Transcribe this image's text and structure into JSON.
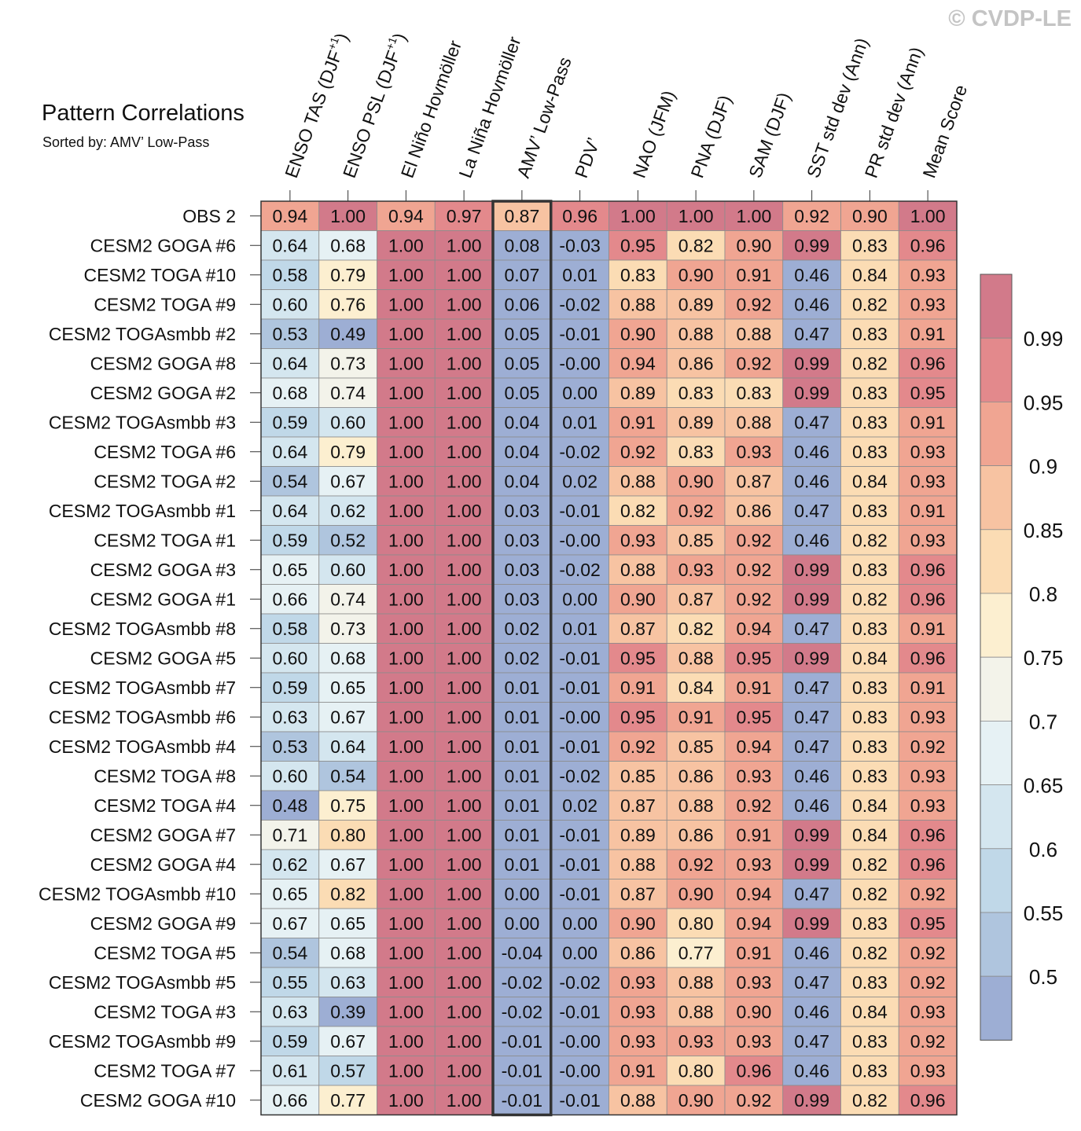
{
  "copyright": "© CVDP-LE",
  "chart_data": {
    "type": "heatmap",
    "title": "Pattern Correlations",
    "subtitle": "Sorted by: AMV’ Low-Pass",
    "highlighted_column": "AMV’ Low-Pass",
    "columns": [
      {
        "base": "ENSO TAS (DJF",
        "sup": "+1",
        "tail": ")"
      },
      {
        "base": "ENSO PSL (DJF",
        "sup": "+1",
        "tail": ")"
      },
      {
        "base": "El Niño Hovmöller",
        "sup": "",
        "tail": ""
      },
      {
        "base": "La Niña Hovmöller",
        "sup": "",
        "tail": ""
      },
      {
        "base": "AMV’ Low-Pass",
        "sup": "",
        "tail": ""
      },
      {
        "base": "PDV’",
        "sup": "",
        "tail": ""
      },
      {
        "base": "NAO (JFM)",
        "sup": "",
        "tail": ""
      },
      {
        "base": "PNA (DJF)",
        "sup": "",
        "tail": ""
      },
      {
        "base": "SAM (DJF)",
        "sup": "",
        "tail": ""
      },
      {
        "base": "SST std dev (Ann)",
        "sup": "",
        "tail": ""
      },
      {
        "base": "PR std dev (Ann)",
        "sup": "",
        "tail": ""
      },
      {
        "base": "Mean Score",
        "sup": "",
        "tail": ""
      }
    ],
    "rows": [
      {
        "label": "OBS 2",
        "values": [
          "0.94",
          "1.00",
          "0.94",
          "0.97",
          "0.87",
          "0.96",
          "1.00",
          "1.00",
          "1.00",
          "0.92",
          "0.90",
          "1.00"
        ]
      },
      {
        "label": "CESM2 GOGA #6",
        "values": [
          "0.64",
          "0.68",
          "1.00",
          "1.00",
          "0.08",
          "-0.03",
          "0.95",
          "0.82",
          "0.90",
          "0.99",
          "0.83",
          "0.96"
        ]
      },
      {
        "label": "CESM2 TOGA #10",
        "values": [
          "0.58",
          "0.79",
          "1.00",
          "1.00",
          "0.07",
          "0.01",
          "0.83",
          "0.90",
          "0.91",
          "0.46",
          "0.84",
          "0.93"
        ]
      },
      {
        "label": "CESM2 TOGA #9",
        "values": [
          "0.60",
          "0.76",
          "1.00",
          "1.00",
          "0.06",
          "-0.02",
          "0.88",
          "0.89",
          "0.92",
          "0.46",
          "0.82",
          "0.93"
        ]
      },
      {
        "label": "CESM2 TOGAsmbb #2",
        "values": [
          "0.53",
          "0.49",
          "1.00",
          "1.00",
          "0.05",
          "-0.01",
          "0.90",
          "0.88",
          "0.88",
          "0.47",
          "0.83",
          "0.91"
        ]
      },
      {
        "label": "CESM2 GOGA #8",
        "values": [
          "0.64",
          "0.73",
          "1.00",
          "1.00",
          "0.05",
          "-0.00",
          "0.94",
          "0.86",
          "0.92",
          "0.99",
          "0.82",
          "0.96"
        ]
      },
      {
        "label": "CESM2 GOGA #2",
        "values": [
          "0.68",
          "0.74",
          "1.00",
          "1.00",
          "0.05",
          "0.00",
          "0.89",
          "0.83",
          "0.83",
          "0.99",
          "0.83",
          "0.95"
        ]
      },
      {
        "label": "CESM2 TOGAsmbb #3",
        "values": [
          "0.59",
          "0.60",
          "1.00",
          "1.00",
          "0.04",
          "0.01",
          "0.91",
          "0.89",
          "0.88",
          "0.47",
          "0.83",
          "0.91"
        ]
      },
      {
        "label": "CESM2 TOGA #6",
        "values": [
          "0.64",
          "0.79",
          "1.00",
          "1.00",
          "0.04",
          "-0.02",
          "0.92",
          "0.83",
          "0.93",
          "0.46",
          "0.83",
          "0.93"
        ]
      },
      {
        "label": "CESM2 TOGA #2",
        "values": [
          "0.54",
          "0.67",
          "1.00",
          "1.00",
          "0.04",
          "0.02",
          "0.88",
          "0.90",
          "0.87",
          "0.46",
          "0.84",
          "0.93"
        ]
      },
      {
        "label": "CESM2 TOGAsmbb #1",
        "values": [
          "0.64",
          "0.62",
          "1.00",
          "1.00",
          "0.03",
          "-0.01",
          "0.82",
          "0.92",
          "0.86",
          "0.47",
          "0.83",
          "0.91"
        ]
      },
      {
        "label": "CESM2 TOGA #1",
        "values": [
          "0.59",
          "0.52",
          "1.00",
          "1.00",
          "0.03",
          "-0.00",
          "0.93",
          "0.85",
          "0.92",
          "0.46",
          "0.82",
          "0.93"
        ]
      },
      {
        "label": "CESM2 GOGA #3",
        "values": [
          "0.65",
          "0.60",
          "1.00",
          "1.00",
          "0.03",
          "-0.02",
          "0.88",
          "0.93",
          "0.92",
          "0.99",
          "0.83",
          "0.96"
        ]
      },
      {
        "label": "CESM2 GOGA #1",
        "values": [
          "0.66",
          "0.74",
          "1.00",
          "1.00",
          "0.03",
          "0.00",
          "0.90",
          "0.87",
          "0.92",
          "0.99",
          "0.82",
          "0.96"
        ]
      },
      {
        "label": "CESM2 TOGAsmbb #8",
        "values": [
          "0.58",
          "0.73",
          "1.00",
          "1.00",
          "0.02",
          "0.01",
          "0.87",
          "0.82",
          "0.94",
          "0.47",
          "0.83",
          "0.91"
        ]
      },
      {
        "label": "CESM2 GOGA #5",
        "values": [
          "0.60",
          "0.68",
          "1.00",
          "1.00",
          "0.02",
          "-0.01",
          "0.95",
          "0.88",
          "0.95",
          "0.99",
          "0.84",
          "0.96"
        ]
      },
      {
        "label": "CESM2 TOGAsmbb #7",
        "values": [
          "0.59",
          "0.65",
          "1.00",
          "1.00",
          "0.01",
          "-0.01",
          "0.91",
          "0.84",
          "0.91",
          "0.47",
          "0.83",
          "0.91"
        ]
      },
      {
        "label": "CESM2 TOGAsmbb #6",
        "values": [
          "0.63",
          "0.67",
          "1.00",
          "1.00",
          "0.01",
          "-0.00",
          "0.95",
          "0.91",
          "0.95",
          "0.47",
          "0.83",
          "0.93"
        ]
      },
      {
        "label": "CESM2 TOGAsmbb #4",
        "values": [
          "0.53",
          "0.64",
          "1.00",
          "1.00",
          "0.01",
          "-0.01",
          "0.92",
          "0.85",
          "0.94",
          "0.47",
          "0.83",
          "0.92"
        ]
      },
      {
        "label": "CESM2 TOGA #8",
        "values": [
          "0.60",
          "0.54",
          "1.00",
          "1.00",
          "0.01",
          "-0.02",
          "0.85",
          "0.86",
          "0.93",
          "0.46",
          "0.83",
          "0.93"
        ]
      },
      {
        "label": "CESM2 TOGA #4",
        "values": [
          "0.48",
          "0.75",
          "1.00",
          "1.00",
          "0.01",
          "0.02",
          "0.87",
          "0.88",
          "0.92",
          "0.46",
          "0.84",
          "0.93"
        ]
      },
      {
        "label": "CESM2 GOGA #7",
        "values": [
          "0.71",
          "0.80",
          "1.00",
          "1.00",
          "0.01",
          "-0.01",
          "0.89",
          "0.86",
          "0.91",
          "0.99",
          "0.84",
          "0.96"
        ]
      },
      {
        "label": "CESM2 GOGA #4",
        "values": [
          "0.62",
          "0.67",
          "1.00",
          "1.00",
          "0.01",
          "-0.01",
          "0.88",
          "0.92",
          "0.93",
          "0.99",
          "0.82",
          "0.96"
        ]
      },
      {
        "label": "CESM2 TOGAsmbb #10",
        "values": [
          "0.65",
          "0.82",
          "1.00",
          "1.00",
          "0.00",
          "-0.01",
          "0.87",
          "0.90",
          "0.94",
          "0.47",
          "0.82",
          "0.92"
        ]
      },
      {
        "label": "CESM2 GOGA #9",
        "values": [
          "0.67",
          "0.65",
          "1.00",
          "1.00",
          "0.00",
          "0.00",
          "0.90",
          "0.80",
          "0.94",
          "0.99",
          "0.83",
          "0.95"
        ]
      },
      {
        "label": "CESM2 TOGA #5",
        "values": [
          "0.54",
          "0.68",
          "1.00",
          "1.00",
          "-0.04",
          "0.00",
          "0.86",
          "0.77",
          "0.91",
          "0.46",
          "0.82",
          "0.92"
        ]
      },
      {
        "label": "CESM2 TOGAsmbb #5",
        "values": [
          "0.55",
          "0.63",
          "1.00",
          "1.00",
          "-0.02",
          "-0.02",
          "0.93",
          "0.88",
          "0.93",
          "0.47",
          "0.83",
          "0.92"
        ]
      },
      {
        "label": "CESM2 TOGA #3",
        "values": [
          "0.63",
          "0.39",
          "1.00",
          "1.00",
          "-0.02",
          "-0.01",
          "0.93",
          "0.88",
          "0.90",
          "0.46",
          "0.84",
          "0.93"
        ]
      },
      {
        "label": "CESM2 TOGAsmbb #9",
        "values": [
          "0.59",
          "0.67",
          "1.00",
          "1.00",
          "-0.01",
          "-0.00",
          "0.93",
          "0.93",
          "0.93",
          "0.47",
          "0.83",
          "0.92"
        ]
      },
      {
        "label": "CESM2 TOGA #7",
        "values": [
          "0.61",
          "0.57",
          "1.00",
          "1.00",
          "-0.01",
          "-0.00",
          "0.91",
          "0.80",
          "0.96",
          "0.46",
          "0.83",
          "0.93"
        ]
      },
      {
        "label": "CESM2 GOGA #10",
        "values": [
          "0.66",
          "0.77",
          "1.00",
          "1.00",
          "-0.01",
          "-0.01",
          "0.88",
          "0.90",
          "0.92",
          "0.99",
          "0.82",
          "0.96"
        ]
      }
    ],
    "colorbar": {
      "tick_labels": [
        "0.99",
        "0.95",
        "0.9",
        "0.85",
        "0.8",
        "0.75",
        "0.7",
        "0.65",
        "0.6",
        "0.55",
        "0.5"
      ],
      "thresholds": [
        0.5,
        0.55,
        0.6,
        0.65,
        0.7,
        0.75,
        0.8,
        0.85,
        0.9,
        0.95,
        0.99
      ],
      "colors": [
        "#9daed4",
        "#afc5de",
        "#c0d8e8",
        "#d4e6ef",
        "#e6f1f4",
        "#f3f3ea",
        "#fcefd0",
        "#fbdcb4",
        "#f7c3a2",
        "#f0a592",
        "#e3898c",
        "#d27a8a"
      ]
    }
  }
}
